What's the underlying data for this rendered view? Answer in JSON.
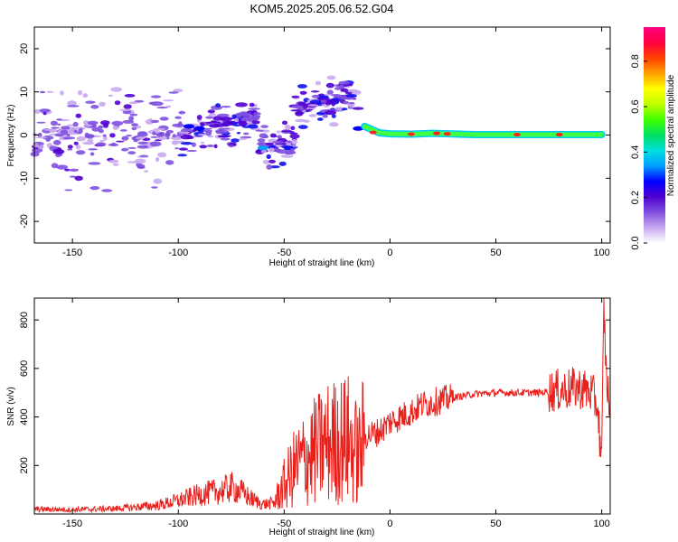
{
  "title": "KOM5.2025.205.06.52.G04",
  "chart_data": [
    {
      "type": "heatmap",
      "xlabel": "Height of straight line (km)",
      "ylabel": "Frequency (Hz)",
      "xlim": [
        -168,
        104
      ],
      "ylim": [
        -25,
        25
      ],
      "xticks": [
        -150,
        -100,
        -50,
        0,
        50,
        100
      ],
      "yticks": [
        -20,
        -10,
        0,
        10,
        20
      ],
      "colorbar": {
        "label": "Normalized spectral amplitude",
        "range": [
          0,
          0.95
        ],
        "ticks": [
          0.0,
          0.2,
          0.4,
          0.6,
          0.8
        ],
        "colormap": [
          "#ffffff",
          "#c8a8f0",
          "#8050e0",
          "#5000d0",
          "#0000ff",
          "#00a0ff",
          "#00e0e0",
          "#00e060",
          "#40ff00",
          "#c0ff00",
          "#ffff00",
          "#ffa000",
          "#ff4000",
          "#ff0040",
          "#ff0080"
        ]
      },
      "ridge": [
        {
          "x": -12,
          "y": 2.0
        },
        {
          "x": -5,
          "y": 0.5
        },
        {
          "x": 0,
          "y": 0.3
        },
        {
          "x": 10,
          "y": 0.2
        },
        {
          "x": 20,
          "y": 0.4
        },
        {
          "x": 40,
          "y": 0.1
        },
        {
          "x": 60,
          "y": 0.1
        },
        {
          "x": 80,
          "y": 0.1
        },
        {
          "x": 100,
          "y": 0.1
        }
      ]
    },
    {
      "type": "line",
      "xlabel": "Height of straight line (km)",
      "ylabel": "SNR (v/v)",
      "xlim": [
        -168,
        104
      ],
      "ylim": [
        0,
        890
      ],
      "xticks": [
        -150,
        -100,
        -50,
        0,
        50,
        100
      ],
      "yticks": [
        200,
        400,
        600,
        800
      ],
      "series": [
        {
          "color": "#e8201c",
          "points": [
            [
              -168,
              20
            ],
            [
              -150,
              18
            ],
            [
              -130,
              22
            ],
            [
              -110,
              35
            ],
            [
              -100,
              55
            ],
            [
              -90,
              80
            ],
            [
              -80,
              95
            ],
            [
              -75,
              110
            ],
            [
              -70,
              90
            ],
            [
              -65,
              60
            ],
            [
              -60,
              40
            ],
            [
              -55,
              45
            ],
            [
              -50,
              120
            ],
            [
              -45,
              190
            ],
            [
              -40,
              230
            ],
            [
              -35,
              260
            ],
            [
              -30,
              290
            ],
            [
              -25,
              300
            ],
            [
              -20,
              310
            ],
            [
              -15,
              240
            ],
            [
              -12,
              320
            ],
            [
              -5,
              340
            ],
            [
              0,
              380
            ],
            [
              5,
              400
            ],
            [
              10,
              420
            ],
            [
              15,
              450
            ],
            [
              20,
              460
            ],
            [
              25,
              470
            ],
            [
              30,
              480
            ],
            [
              40,
              495
            ],
            [
              50,
              500
            ],
            [
              60,
              500
            ],
            [
              70,
              500
            ],
            [
              80,
              510
            ],
            [
              90,
              520
            ],
            [
              95,
              500
            ],
            [
              98,
              450
            ],
            [
              100,
              200
            ],
            [
              101,
              880
            ],
            [
              102,
              600
            ],
            [
              104,
              400
            ]
          ]
        }
      ]
    }
  ]
}
